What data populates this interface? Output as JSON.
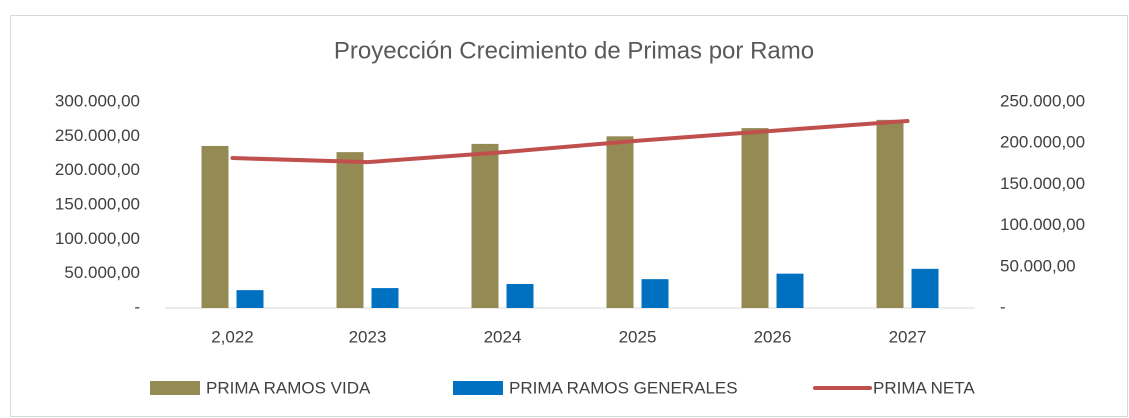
{
  "chart_data": {
    "type": "bar",
    "title": "Proyección Crecimiento de Primas por Ramo",
    "categories": [
      "2,022",
      "2023",
      "2024",
      "2025",
      "2026",
      "2027"
    ],
    "series": [
      {
        "name": "PRIMA RAMOS VIDA",
        "type": "bar",
        "color": "#948a54",
        "values": [
          236000,
          227000,
          239000,
          250000,
          262000,
          274000
        ]
      },
      {
        "name": "PRIMA RAMOS GENERALES",
        "type": "bar",
        "color": "#0070c0",
        "values": [
          26000,
          29000,
          35000,
          42000,
          50000,
          57000
        ]
      },
      {
        "name": "PRIMA NETA",
        "type": "line",
        "axis": "y2",
        "color": "#c0504d",
        "values": [
          182000,
          177000,
          189000,
          203000,
          215000,
          227000
        ]
      }
    ],
    "ylim": [
      0,
      300000
    ],
    "yticks": [
      {
        "value": 0,
        "label": "-"
      },
      {
        "value": 50000,
        "label": "50.000,00"
      },
      {
        "value": 100000,
        "label": "100.000,00"
      },
      {
        "value": 150000,
        "label": "150.000,00"
      },
      {
        "value": 200000,
        "label": "200.000,00"
      },
      {
        "value": 250000,
        "label": "250.000,00"
      },
      {
        "value": 300000,
        "label": "300.000,00"
      }
    ],
    "y2lim": [
      0,
      250000
    ],
    "y2ticks": [
      {
        "value": 0,
        "label": "-"
      },
      {
        "value": 50000,
        "label": "50.000,00"
      },
      {
        "value": 100000,
        "label": "100.000,00"
      },
      {
        "value": 150000,
        "label": "150.000,00"
      },
      {
        "value": 200000,
        "label": "200.000,00"
      },
      {
        "value": 250000,
        "label": "250.000,00"
      }
    ],
    "legend": "bottom"
  }
}
